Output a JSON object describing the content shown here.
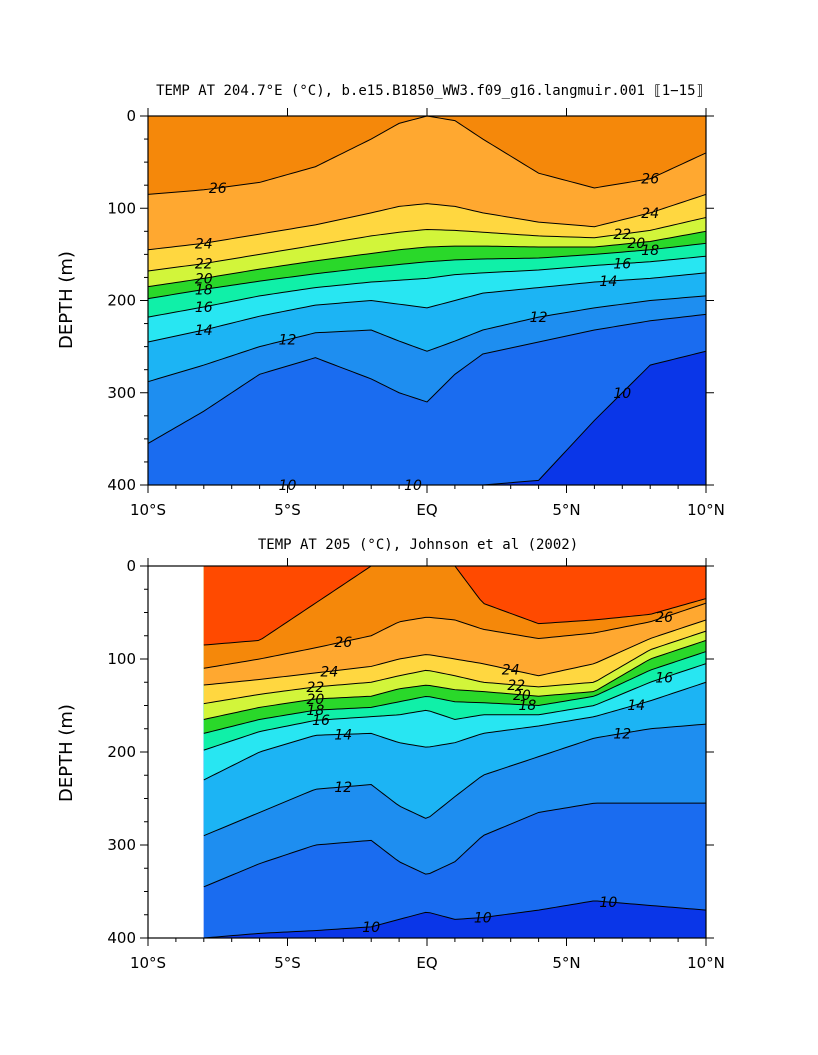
{
  "chart_data": [
    {
      "type": "contour",
      "title": "TEMP AT 204.7°E (°C), b.e15.B1850_WW3.f09_g16.langmuir.001 ⟦1−15⟧",
      "xlabel": "",
      "ylabel": "DEPTH (m)",
      "xlim": [
        -10,
        10
      ],
      "ylim": [
        400,
        0
      ],
      "x_ticks": [
        -10,
        -5,
        0,
        5,
        10
      ],
      "x_tick_labels": [
        "10°S",
        "5°S",
        "EQ",
        "5°N",
        "10°N"
      ],
      "y_ticks": [
        0,
        100,
        200,
        300,
        400
      ],
      "y_tick_labels": [
        "0",
        "100",
        "200",
        "300",
        "400"
      ],
      "contour_interval": 1,
      "lat": [
        -10,
        -8,
        -6,
        -4,
        -2,
        -1,
        0,
        1,
        2,
        4,
        6,
        8,
        10
      ],
      "isotherms": [
        {
          "level": 26,
          "depth": [
            85,
            80,
            72,
            55,
            25,
            8,
            0,
            5,
            25,
            62,
            78,
            68,
            40
          ]
        },
        {
          "level": 24,
          "depth": [
            145,
            138,
            128,
            118,
            105,
            98,
            95,
            98,
            105,
            115,
            120,
            105,
            85
          ]
        },
        {
          "level": 22,
          "depth": [
            168,
            160,
            150,
            140,
            130,
            126,
            123,
            124,
            126,
            130,
            132,
            124,
            110
          ]
        },
        {
          "level": 20,
          "depth": [
            185,
            176,
            166,
            157,
            149,
            145,
            142,
            141,
            141,
            142,
            142,
            136,
            125
          ]
        },
        {
          "level": 18,
          "depth": [
            198,
            188,
            179,
            171,
            164,
            161,
            158,
            156,
            155,
            154,
            150,
            145,
            138
          ]
        },
        {
          "level": 16,
          "depth": [
            218,
            207,
            195,
            186,
            180,
            178,
            176,
            172,
            170,
            167,
            162,
            158,
            152
          ]
        },
        {
          "level": 14,
          "depth": [
            245,
            232,
            217,
            205,
            200,
            204,
            208,
            200,
            192,
            186,
            180,
            176,
            170
          ]
        },
        {
          "level": 12,
          "depth": [
            288,
            270,
            250,
            235,
            232,
            244,
            255,
            244,
            232,
            218,
            208,
            200,
            195
          ]
        },
        {
          "level": 11,
          "depth": [
            355,
            320,
            280,
            262,
            285,
            300,
            310,
            280,
            258,
            245,
            232,
            222,
            215
          ]
        },
        {
          "level": 10,
          "depth": [
            400,
            400,
            400,
            400,
            400,
            400,
            400,
            400,
            400,
            395,
            330,
            270,
            255
          ]
        }
      ],
      "contour_labels": [
        26,
        24,
        22,
        20,
        18,
        16,
        14,
        12,
        10,
        10,
        26,
        24,
        22,
        20,
        18,
        16,
        14,
        12,
        10
      ]
    },
    {
      "type": "contour",
      "title": "TEMP AT 205 (°C), Johnson et al (2002)",
      "xlabel": "",
      "ylabel": "DEPTH (m)",
      "xlim": [
        -10,
        10
      ],
      "ylim": [
        400,
        0
      ],
      "data_extent_lat": [
        -8,
        10
      ],
      "x_ticks": [
        -10,
        -5,
        0,
        5,
        10
      ],
      "x_tick_labels": [
        "10°S",
        "5°S",
        "EQ",
        "5°N",
        "10°N"
      ],
      "y_ticks": [
        0,
        100,
        200,
        300,
        400
      ],
      "y_tick_labels": [
        "0",
        "100",
        "200",
        "300",
        "400"
      ],
      "contour_interval": 1,
      "lat": [
        -8,
        -6,
        -4,
        -2,
        -1,
        0,
        1,
        2,
        4,
        6,
        8,
        10
      ],
      "isotherms": [
        {
          "level": 27,
          "depth": [
            85,
            80,
            40,
            0,
            0,
            0,
            0,
            40,
            62,
            58,
            52,
            35
          ]
        },
        {
          "level": 26,
          "depth": [
            110,
            100,
            88,
            75,
            60,
            55,
            58,
            68,
            78,
            72,
            60,
            40
          ]
        },
        {
          "level": 24,
          "depth": [
            128,
            122,
            115,
            108,
            100,
            95,
            100,
            105,
            118,
            105,
            78,
            58
          ]
        },
        {
          "level": 22,
          "depth": [
            148,
            138,
            130,
            125,
            118,
            112,
            118,
            125,
            130,
            125,
            90,
            70
          ]
        },
        {
          "level": 20,
          "depth": [
            165,
            152,
            143,
            140,
            132,
            128,
            133,
            135,
            140,
            135,
            100,
            80
          ]
        },
        {
          "level": 18,
          "depth": [
            180,
            165,
            155,
            152,
            146,
            140,
            146,
            147,
            150,
            140,
            112,
            92
          ]
        },
        {
          "level": 16,
          "depth": [
            198,
            178,
            166,
            162,
            160,
            155,
            165,
            160,
            160,
            150,
            125,
            105
          ]
        },
        {
          "level": 14,
          "depth": [
            230,
            200,
            182,
            180,
            190,
            195,
            190,
            180,
            172,
            162,
            145,
            125
          ]
        },
        {
          "level": 12,
          "depth": [
            290,
            265,
            240,
            235,
            258,
            272,
            248,
            225,
            205,
            185,
            175,
            170
          ]
        },
        {
          "level": 11,
          "depth": [
            345,
            320,
            300,
            295,
            318,
            332,
            318,
            290,
            265,
            255,
            255,
            255
          ]
        },
        {
          "level": 10,
          "depth": [
            400,
            395,
            392,
            388,
            380,
            372,
            380,
            378,
            370,
            360,
            365,
            370
          ]
        }
      ],
      "contour_labels": [
        26,
        24,
        22,
        20,
        18,
        16,
        14,
        12,
        10,
        10,
        26,
        24,
        22,
        20,
        18,
        16,
        14,
        12,
        10
      ]
    }
  ],
  "colors": {
    "scale": [
      {
        "min": 28,
        "color": "#ff1000"
      },
      {
        "min": 27,
        "color": "#ff4a00"
      },
      {
        "min": 26,
        "color": "#f5880a"
      },
      {
        "min": 25,
        "color": "#ff9b2e"
      },
      {
        "min": 24,
        "color": "#ffa830"
      },
      {
        "min": 23,
        "color": "#ffc23a"
      },
      {
        "min": 22,
        "color": "#ffd740"
      },
      {
        "min": 21,
        "color": "#f8f23a"
      },
      {
        "min": 20,
        "color": "#d2f53a"
      },
      {
        "min": 19,
        "color": "#8cf03a"
      },
      {
        "min": 18,
        "color": "#2ad82a"
      },
      {
        "min": 17,
        "color": "#10ec66"
      },
      {
        "min": 16,
        "color": "#10f0a8"
      },
      {
        "min": 15,
        "color": "#10f0d8"
      },
      {
        "min": 14,
        "color": "#28e6f2"
      },
      {
        "min": 13,
        "color": "#20cff8"
      },
      {
        "min": 12,
        "color": "#1cb4f4"
      },
      {
        "min": 11,
        "color": "#1e8ef0"
      },
      {
        "min": 10,
        "color": "#1a6cf0"
      },
      {
        "min": 0,
        "color": "#0a36e8"
      }
    ],
    "line": "#000000",
    "frame": "#000000"
  }
}
